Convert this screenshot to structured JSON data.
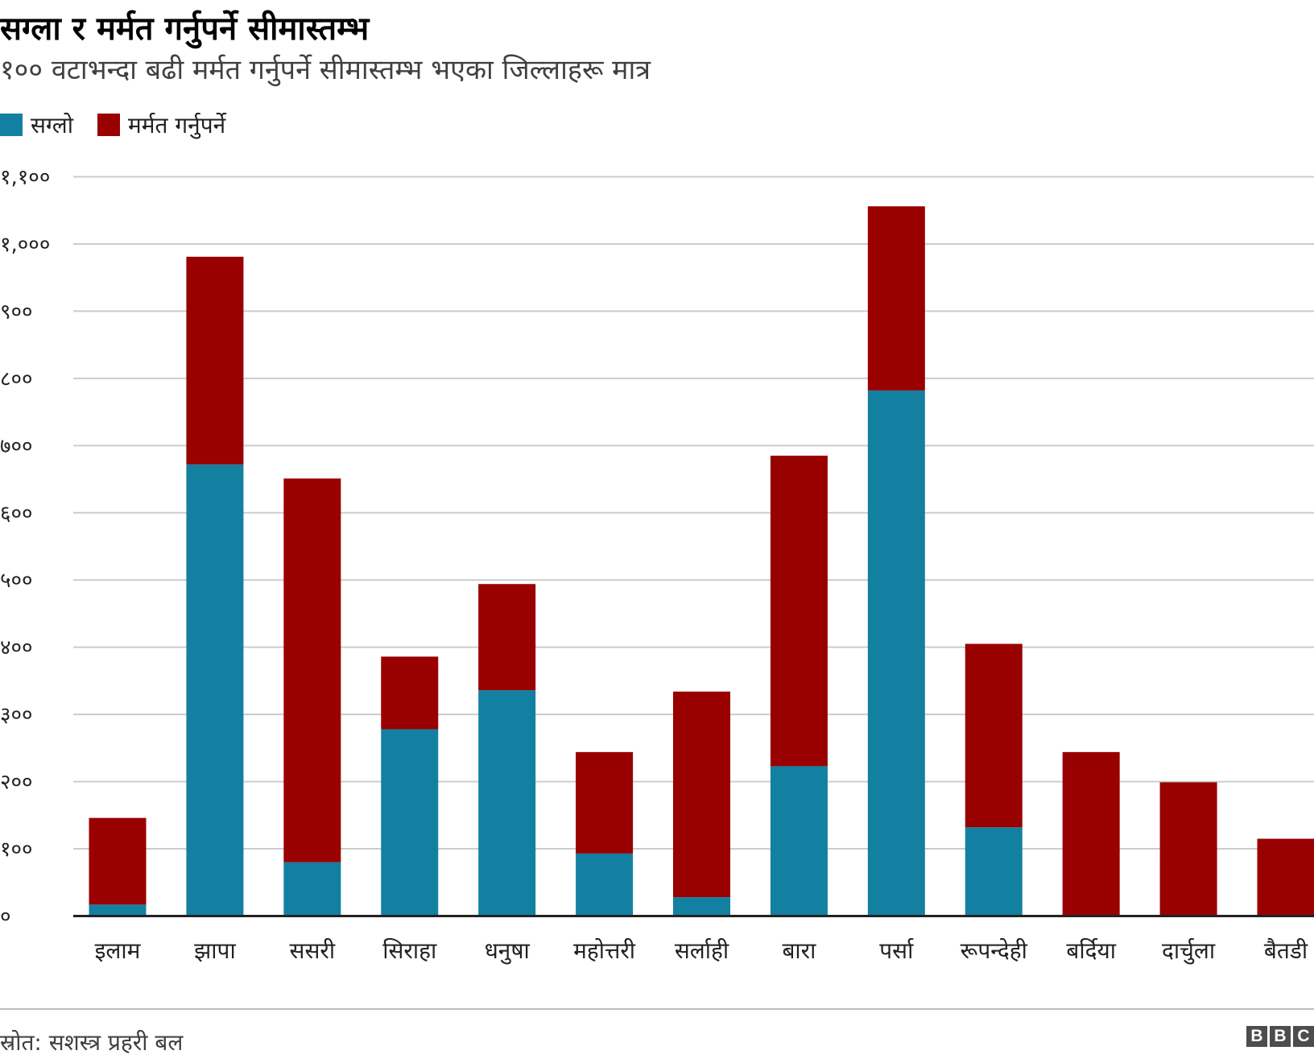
{
  "header": {
    "title": "सग्ला र मर्मत गर्नुपर्ने सीमास्तम्भ",
    "subtitle": "१०० वटाभन्दा बढी मर्मत गर्नुपर्ने सीमास्तम्भ भएका जिल्लाहरू मात्र"
  },
  "colors": {
    "intact": "#1380a1",
    "repair": "#990000"
  },
  "chart_data": {
    "type": "bar",
    "stacked": true,
    "categories": [
      "इलाम",
      "झापा",
      "ससरी",
      "सिराहा",
      "धनुषा",
      "महोत्तरी",
      "सर्लाही",
      "बारा",
      "पर्सा",
      "रूपन्देही",
      "बर्दिया",
      "दार्चुला",
      "बैतडी"
    ],
    "series": [
      {
        "name": "सग्लो",
        "values": [
          17,
          672,
          80,
          278,
          336,
          93,
          28,
          223,
          782,
          132,
          0,
          0,
          0
        ]
      },
      {
        "name": "मर्मत गर्नुपर्ने",
        "values": [
          129,
          309,
          571,
          108,
          158,
          151,
          306,
          462,
          274,
          273,
          244,
          199,
          115
        ]
      }
    ],
    "ylim": [
      0,
      1100
    ],
    "yticks": [
      0,
      100,
      200,
      300,
      400,
      500,
      600,
      700,
      800,
      900,
      1000,
      1100
    ],
    "ytick_labels": [
      "०",
      "१००",
      "२००",
      "३००",
      "४००",
      "५००",
      "६००",
      "७००",
      "८००",
      "९००",
      "१,०००",
      "१,१००"
    ],
    "grid": true,
    "legend": "top-left"
  },
  "footer": {
    "source": "स्रोत: सशस्त्र प्रहरी बल",
    "logo": "BBC"
  }
}
